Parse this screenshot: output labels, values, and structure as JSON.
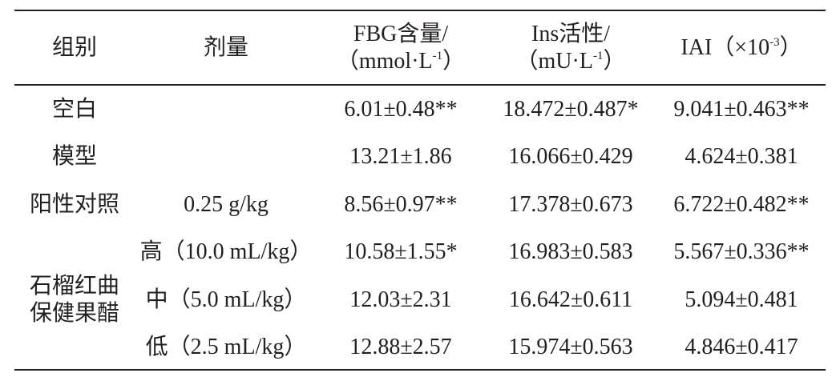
{
  "table": {
    "header": [
      {
        "text": "组别"
      },
      {
        "text": "剂量"
      },
      {
        "text": "FBG含量/",
        "unit": "（mmol·L",
        "sup": "-1",
        "unit_end": "）"
      },
      {
        "text": "Ins活性/",
        "unit": "（mU·L",
        "sup": "-1",
        "unit_end": "）"
      },
      {
        "text": "IAI（×10",
        "sup": "-3",
        "unit_end": "）"
      }
    ],
    "groups": [
      {
        "name": [
          "空白"
        ],
        "rows": [
          {
            "values": [
              "6.01±0.48**",
              "18.472±0.487*",
              "9.041±0.463**"
            ]
          }
        ]
      },
      {
        "name": [
          "模型"
        ],
        "rows": [
          {
            "values": [
              "13.21±1.86",
              "16.066±0.429",
              "4.624±0.381"
            ]
          }
        ]
      },
      {
        "name": [
          "阳性对照"
        ],
        "rows": [
          {
            "dose": "0.25 g/kg",
            "values": [
              "8.56±0.97**",
              "17.378±0.673",
              "6.722±0.482**"
            ]
          }
        ]
      },
      {
        "name": [
          "石榴红曲",
          "保健果醋"
        ],
        "rows": [
          {
            "dose": "高（10.0 mL/kg）",
            "values": [
              "10.58±1.55*",
              "16.983±0.583",
              "5.567±0.336**"
            ]
          },
          {
            "dose": "中（5.0 mL/kg）",
            "values": [
              "12.03±2.31",
              "16.642±0.611",
              "5.094±0.481"
            ]
          },
          {
            "dose": "低（2.5 mL/kg）",
            "values": [
              "12.88±2.57",
              "15.974±0.563",
              "4.846±0.417"
            ]
          }
        ]
      }
    ]
  }
}
